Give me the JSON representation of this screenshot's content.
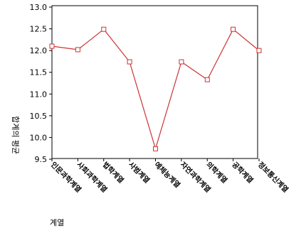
{
  "chart_data": {
    "type": "line",
    "title": "",
    "xlabel": "계열",
    "ylabel": "합계의 평균",
    "categories": [
      "인문과학계열",
      "사회과학계열",
      "법학계열",
      "사범계열",
      "예체능계열",
      "자연과학계열",
      "의학계열",
      "공학계열",
      "정보통신계열"
    ],
    "series": [
      {
        "values": [
          12.1,
          12.02,
          12.49,
          11.74,
          9.74,
          11.74,
          11.33,
          12.49,
          12.0
        ],
        "color": "#cc3333"
      }
    ],
    "ylim": [
      9.5,
      13.0
    ],
    "yticks": [
      "13.0",
      "12.5",
      "12.0",
      "11.5",
      "11.0",
      "10.5",
      "10.0",
      "9.5"
    ],
    "marker": "square",
    "grid": false,
    "legend": "none"
  }
}
